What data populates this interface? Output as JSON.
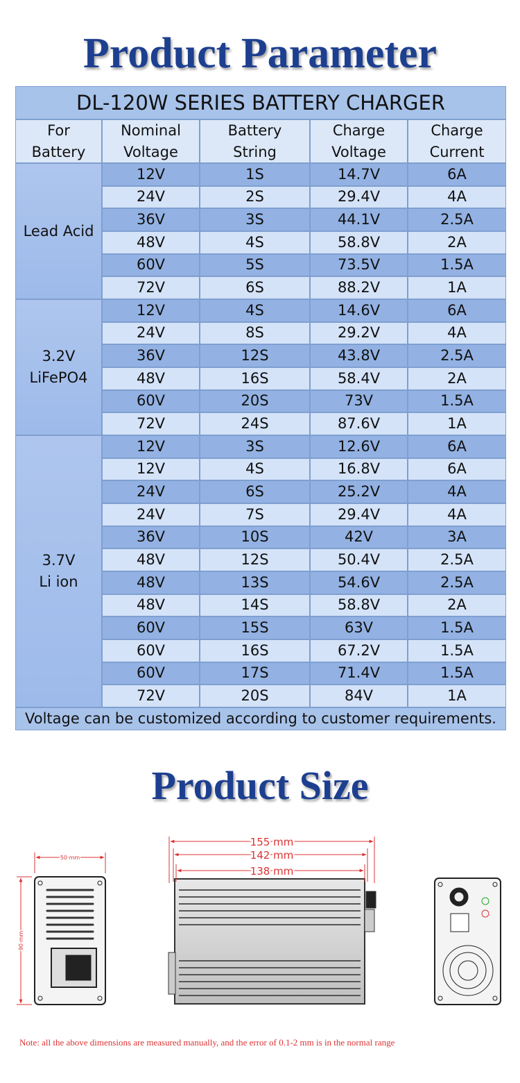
{
  "title": "Product Parameter",
  "table": {
    "title": "DL-120W SERIES BATTERY CHARGER",
    "headers": [
      [
        "For",
        "Battery"
      ],
      [
        "Nominal",
        "Voltage"
      ],
      [
        "Battery",
        "String"
      ],
      [
        "Charge",
        "Voltage"
      ],
      [
        "Charge",
        "Current"
      ]
    ],
    "groups": [
      {
        "label": [
          "Lead Acid"
        ],
        "rows": [
          [
            "12V",
            "1S",
            "14.7V",
            "6A"
          ],
          [
            "24V",
            "2S",
            "29.4V",
            "4A"
          ],
          [
            "36V",
            "3S",
            "44.1V",
            "2.5A"
          ],
          [
            "48V",
            "4S",
            "58.8V",
            "2A"
          ],
          [
            "60V",
            "5S",
            "73.5V",
            "1.5A"
          ],
          [
            "72V",
            "6S",
            "88.2V",
            "1A"
          ]
        ]
      },
      {
        "label": [
          "3.2V",
          "LiFePO4"
        ],
        "rows": [
          [
            "12V",
            "4S",
            "14.6V",
            "6A"
          ],
          [
            "24V",
            "8S",
            "29.2V",
            "4A"
          ],
          [
            "36V",
            "12S",
            "43.8V",
            "2.5A"
          ],
          [
            "48V",
            "16S",
            "58.4V",
            "2A"
          ],
          [
            "60V",
            "20S",
            "73V",
            "1.5A"
          ],
          [
            "72V",
            "24S",
            "87.6V",
            "1A"
          ]
        ]
      },
      {
        "label": [
          "3.7V",
          "Li ion"
        ],
        "rows": [
          [
            "12V",
            "3S",
            "12.6V",
            "6A"
          ],
          [
            "12V",
            "4S",
            "16.8V",
            "6A"
          ],
          [
            "24V",
            "6S",
            "25.2V",
            "4A"
          ],
          [
            "24V",
            "7S",
            "29.4V",
            "4A"
          ],
          [
            "36V",
            "10S",
            "42V",
            "3A"
          ],
          [
            "48V",
            "12S",
            "50.4V",
            "2.5A"
          ],
          [
            "48V",
            "13S",
            "54.6V",
            "2.5A"
          ],
          [
            "48V",
            "14S",
            "58.8V",
            "2A"
          ],
          [
            "60V",
            "15S",
            "63V",
            "1.5A"
          ],
          [
            "60V",
            "16S",
            "67.2V",
            "1.5A"
          ],
          [
            "60V",
            "17S",
            "71.4V",
            "1.5A"
          ],
          [
            "72V",
            "20S",
            "84V",
            "1A"
          ]
        ]
      }
    ],
    "footer": "Voltage can be customized according to customer requirements."
  },
  "size": {
    "title": "Product Size",
    "side_width": "50 mm",
    "side_height": "90 mm",
    "lengths": [
      "155 mm",
      "142 mm",
      "138 mm"
    ],
    "note": "Note: all the above dimensions are measured manually, and the error of 0.1-2 mm is in the normal range"
  }
}
